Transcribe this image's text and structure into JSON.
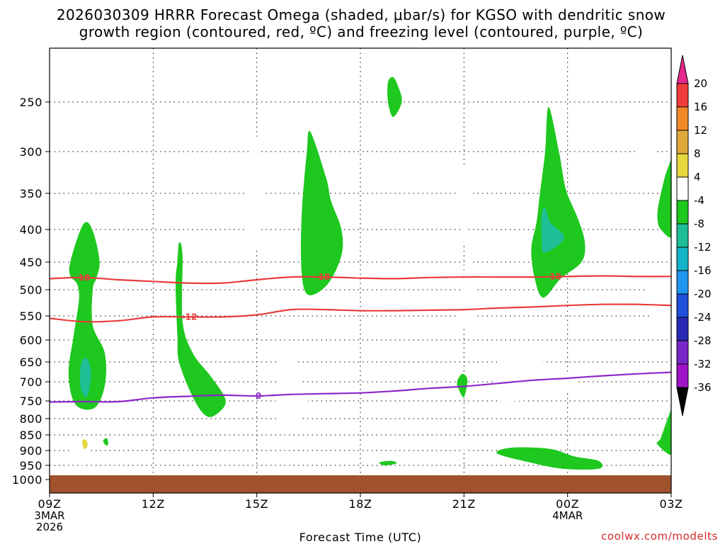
{
  "chart_data": {
    "type": "contour",
    "title_line1": "2026030309 HRRR Forecast Omega (shaded, μbar/s) for KGSO with dendritic snow",
    "title_line2": "growth region (contoured, red, ºC) and freezing level (contoured, purple, ºC)",
    "xlabel": "Forecast Time (UTC)",
    "credit": "coolwx.com/modelts",
    "x_range_hours": [
      0,
      18
    ],
    "y_range_hpa": [
      1000,
      200
    ],
    "y_ticks": [
      250,
      300,
      350,
      400,
      450,
      500,
      550,
      600,
      650,
      700,
      750,
      800,
      850,
      900,
      950,
      1000
    ],
    "x_ticks": [
      {
        "hour": 0,
        "lines": [
          "09Z",
          "3MAR",
          "2026"
        ]
      },
      {
        "hour": 3,
        "lines": [
          "12Z"
        ]
      },
      {
        "hour": 6,
        "lines": [
          "15Z"
        ]
      },
      {
        "hour": 9,
        "lines": [
          "18Z"
        ]
      },
      {
        "hour": 12,
        "lines": [
          "21Z"
        ]
      },
      {
        "hour": 15,
        "lines": [
          "00Z",
          "4MAR"
        ]
      },
      {
        "hour": 18,
        "lines": [
          "03Z"
        ]
      }
    ],
    "colorbar": {
      "levels": [
        20,
        16,
        12,
        8,
        4,
        -4,
        -8,
        -12,
        -16,
        -20,
        -24,
        -28,
        -32,
        -36
      ],
      "colors": [
        "#f03c3c",
        "#f08a28",
        "#e0a83c",
        "#e6d83c",
        "#ffffff",
        "#1ec81e",
        "#1ebe96",
        "#14b4c8",
        "#1e96f0",
        "#1e50dc",
        "#2828b4",
        "#7828c8",
        "#a014c8",
        "#a0a0a0"
      ],
      "top_color": "#e6288c",
      "bottom_color": "#000000"
    },
    "contours": [
      {
        "label": "-18",
        "color": "#e83c3c",
        "label_hours": [
          0.95,
          7.9,
          14.6
        ],
        "points": [
          [
            0,
            480
          ],
          [
            1,
            478
          ],
          [
            2,
            482
          ],
          [
            3,
            485
          ],
          [
            4,
            488
          ],
          [
            5,
            488
          ],
          [
            6,
            482
          ],
          [
            7,
            477
          ],
          [
            8,
            477
          ],
          [
            9,
            479
          ],
          [
            10,
            480
          ],
          [
            11,
            478
          ],
          [
            12,
            477
          ],
          [
            13,
            477
          ],
          [
            14,
            477
          ],
          [
            15,
            476
          ],
          [
            16,
            475
          ],
          [
            17,
            476
          ],
          [
            18,
            476
          ]
        ]
      },
      {
        "label": "-12",
        "color": "#e83c3c",
        "label_hours": [
          4.05
        ],
        "points": [
          [
            0,
            555
          ],
          [
            1,
            562
          ],
          [
            2,
            560
          ],
          [
            3,
            552
          ],
          [
            4,
            552
          ],
          [
            5,
            552
          ],
          [
            6,
            548
          ],
          [
            7,
            538
          ],
          [
            8,
            538
          ],
          [
            9,
            540
          ],
          [
            10,
            540
          ],
          [
            11,
            539
          ],
          [
            12,
            538
          ],
          [
            13,
            535
          ],
          [
            14,
            533
          ],
          [
            15,
            530
          ],
          [
            16,
            528
          ],
          [
            17,
            528
          ],
          [
            18,
            530
          ]
        ]
      },
      {
        "label": "0",
        "color": "#8c28c8",
        "label_hours": [
          6.05
        ],
        "points": [
          [
            0,
            753
          ],
          [
            1,
            752
          ],
          [
            2,
            752
          ],
          [
            3,
            742
          ],
          [
            4,
            738
          ],
          [
            5,
            735
          ],
          [
            6,
            737
          ],
          [
            7,
            733
          ],
          [
            8,
            731
          ],
          [
            9,
            729
          ],
          [
            10,
            724
          ],
          [
            11,
            717
          ],
          [
            12,
            712
          ],
          [
            13,
            704
          ],
          [
            14,
            696
          ],
          [
            15,
            691
          ],
          [
            16,
            685
          ],
          [
            17,
            680
          ],
          [
            18,
            676
          ]
        ]
      }
    ],
    "omega_areas": [
      {
        "category": "4",
        "pts": [
          [
            1.15,
            255
          ],
          [
            1.25,
            252
          ],
          [
            1.35,
            262
          ],
          [
            1.35,
            280
          ],
          [
            1.25,
            285
          ],
          [
            1.15,
            275
          ]
        ]
      },
      {
        "category": "4",
        "pts": [
          [
            5.7,
            370
          ],
          [
            5.8,
            300
          ],
          [
            5.85,
            265
          ],
          [
            5.95,
            275
          ],
          [
            6.2,
            340
          ],
          [
            6.15,
            360
          ],
          [
            6.05,
            380
          ],
          [
            6.05,
            420
          ],
          [
            5.9,
            440
          ],
          [
            5.75,
            420
          ]
        ]
      },
      {
        "category": "4",
        "pts": [
          [
            6.55,
            750
          ],
          [
            6.65,
            650
          ],
          [
            6.85,
            615
          ],
          [
            7.0,
            620
          ],
          [
            7.2,
            680
          ],
          [
            7.5,
            760
          ],
          [
            7.3,
            800
          ],
          [
            6.9,
            825
          ],
          [
            6.7,
            810
          ],
          [
            6.55,
            780
          ]
        ]
      },
      {
        "category": "4",
        "pts": [
          [
            0.55,
            880
          ],
          [
            0.75,
            855
          ],
          [
            1.0,
            855
          ],
          [
            1.2,
            880
          ],
          [
            1.15,
            920
          ],
          [
            0.95,
            950
          ],
          [
            0.75,
            920
          ]
        ]
      },
      {
        "category": "4",
        "pts": [
          [
            11.8,
            350
          ],
          [
            11.85,
            325
          ],
          [
            12.05,
            315
          ],
          [
            12.3,
            330
          ],
          [
            12.2,
            370
          ],
          [
            12.05,
            400
          ],
          [
            12.0,
            420
          ]
        ]
      },
      {
        "category": "4",
        "pts": [
          [
            11.85,
            535
          ],
          [
            11.95,
            510
          ],
          [
            12.0,
            470
          ],
          [
            12.05,
            440
          ],
          [
            12.3,
            470
          ],
          [
            12.4,
            520
          ],
          [
            12.35,
            560
          ],
          [
            12.1,
            575
          ],
          [
            11.9,
            560
          ]
        ]
      },
      {
        "category": "4",
        "pts": [
          [
            11.8,
            860
          ],
          [
            12.0,
            855
          ],
          [
            12.2,
            880
          ],
          [
            12.0,
            900
          ]
        ]
      },
      {
        "category": "4",
        "pts": [
          [
            12.9,
            745
          ],
          [
            12.85,
            700
          ],
          [
            12.95,
            655
          ],
          [
            13.2,
            610
          ],
          [
            14.0,
            640
          ],
          [
            14.8,
            670
          ],
          [
            15.3,
            700
          ],
          [
            14.7,
            740
          ],
          [
            13.5,
            750
          ]
        ]
      },
      {
        "category": "4",
        "pts": [
          [
            17.0,
            280
          ],
          [
            17.25,
            262
          ],
          [
            17.5,
            275
          ],
          [
            17.6,
            320
          ],
          [
            17.5,
            345
          ],
          [
            17.25,
            335
          ],
          [
            17.0,
            310
          ]
        ]
      },
      {
        "category": "4",
        "pts": [
          [
            17.3,
            500
          ],
          [
            17.5,
            495
          ],
          [
            17.9,
            490
          ],
          [
            18.1,
            505
          ],
          [
            18.1,
            600
          ],
          [
            17.85,
            595
          ],
          [
            17.5,
            560
          ],
          [
            17.35,
            545
          ]
        ]
      },
      {
        "category": "-4",
        "pts": [
          [
            0.6,
            450
          ],
          [
            0.9,
            400
          ],
          [
            1.1,
            390
          ],
          [
            1.3,
            410
          ],
          [
            1.45,
            450
          ],
          [
            1.35,
            480
          ],
          [
            1.25,
            500
          ],
          [
            1.25,
            570
          ],
          [
            1.6,
            630
          ],
          [
            1.6,
            710
          ],
          [
            1.3,
            770
          ],
          [
            0.75,
            760
          ],
          [
            0.55,
            680
          ],
          [
            0.7,
            590
          ],
          [
            0.85,
            520
          ],
          [
            0.8,
            490
          ],
          [
            0.6,
            475
          ]
        ]
      },
      {
        "category": "-4",
        "pts": [
          [
            3.65,
            490
          ],
          [
            3.7,
            450
          ],
          [
            3.75,
            420
          ],
          [
            3.85,
            440
          ],
          [
            3.85,
            560
          ],
          [
            4.15,
            630
          ],
          [
            4.7,
            690
          ],
          [
            5.1,
            750
          ],
          [
            4.8,
            790
          ],
          [
            4.5,
            790
          ],
          [
            4.15,
            740
          ],
          [
            3.75,
            650
          ],
          [
            3.7,
            590
          ]
        ]
      },
      {
        "category": "-4",
        "pts": [
          [
            7.3,
            380
          ],
          [
            7.45,
            300
          ],
          [
            7.55,
            280
          ],
          [
            8.0,
            330
          ],
          [
            8.15,
            360
          ],
          [
            8.45,
            400
          ],
          [
            8.45,
            440
          ],
          [
            8.05,
            490
          ],
          [
            7.5,
            510
          ],
          [
            7.3,
            470
          ]
        ]
      },
      {
        "category": "-4",
        "pts": [
          [
            9.8,
            230
          ],
          [
            9.95,
            225
          ],
          [
            10.1,
            235
          ],
          [
            10.2,
            250
          ],
          [
            9.95,
            265
          ],
          [
            9.8,
            250
          ]
        ]
      },
      {
        "category": "-4",
        "pts": [
          [
            14.1,
            390
          ],
          [
            14.2,
            350
          ],
          [
            14.35,
            300
          ],
          [
            14.45,
            255
          ],
          [
            14.75,
            300
          ],
          [
            14.95,
            345
          ],
          [
            15.3,
            385
          ],
          [
            15.5,
            420
          ],
          [
            15.4,
            450
          ],
          [
            14.8,
            480
          ],
          [
            14.3,
            515
          ],
          [
            14.05,
            480
          ],
          [
            13.95,
            430
          ]
        ]
      },
      {
        "category": "-4",
        "pts": [
          [
            11.8,
            700
          ],
          [
            11.95,
            680
          ],
          [
            12.1,
            695
          ],
          [
            12.0,
            740
          ],
          [
            11.85,
            720
          ]
        ]
      },
      {
        "category": "-4",
        "pts": [
          [
            9.55,
            940
          ],
          [
            9.9,
            935
          ],
          [
            10.05,
            943
          ],
          [
            9.7,
            950
          ]
        ]
      },
      {
        "category": "-4",
        "pts": [
          [
            1.55,
            870
          ],
          [
            1.65,
            860
          ],
          [
            1.7,
            875
          ],
          [
            1.65,
            885
          ]
        ]
      },
      {
        "category": "-4",
        "pts": [
          [
            13.0,
            900
          ],
          [
            13.5,
            890
          ],
          [
            14.5,
            895
          ],
          [
            15.2,
            920
          ],
          [
            15.9,
            935
          ],
          [
            15.9,
            962
          ],
          [
            14.85,
            962
          ],
          [
            13.9,
            940
          ],
          [
            13.05,
            915
          ]
        ]
      },
      {
        "category": "-4",
        "pts": [
          [
            17.7,
            350
          ],
          [
            17.9,
            320
          ],
          [
            18.1,
            310
          ],
          [
            18.1,
            405
          ],
          [
            17.7,
            400
          ],
          [
            17.6,
            380
          ]
        ]
      },
      {
        "category": "-4",
        "pts": [
          [
            17.9,
            800
          ],
          [
            18.1,
            760
          ],
          [
            18.1,
            910
          ],
          [
            17.6,
            880
          ],
          [
            17.7,
            860
          ]
        ]
      },
      {
        "category": "-8",
        "pts": [
          [
            0.9,
            660
          ],
          [
            1.05,
            640
          ],
          [
            1.2,
            670
          ],
          [
            1.15,
            720
          ],
          [
            1.05,
            740
          ],
          [
            0.9,
            715
          ]
        ]
      },
      {
        "category": "-8",
        "pts": [
          [
            14.25,
            380
          ],
          [
            14.35,
            370
          ],
          [
            14.5,
            390
          ],
          [
            14.9,
            410
          ],
          [
            14.7,
            425
          ],
          [
            14.3,
            435
          ],
          [
            14.25,
            410
          ]
        ]
      },
      {
        "category": "8",
        "pts": [
          [
            0.95,
            870
          ],
          [
            1.05,
            865
          ],
          [
            1.1,
            885
          ],
          [
            1.0,
            895
          ]
        ]
      }
    ],
    "ground": {
      "from_hpa": 985,
      "to_hpa": 1030,
      "color": "#a0522d"
    }
  }
}
